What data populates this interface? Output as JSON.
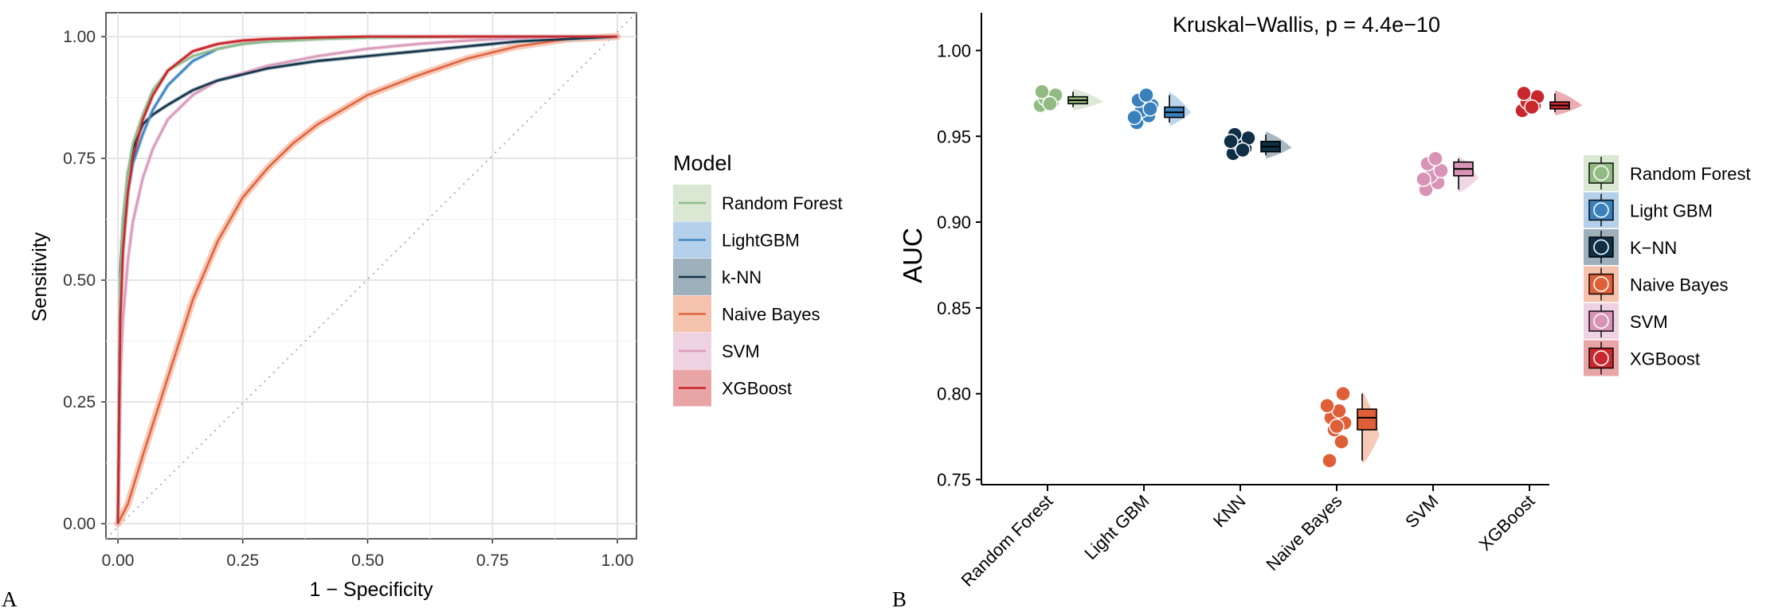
{
  "panels": {
    "a_label": "A",
    "b_label": "B"
  },
  "chart_data": [
    {
      "type": "line",
      "panel": "A",
      "xlabel": "1 − Specificity",
      "ylabel": "Sensitivity",
      "xlim": [
        0,
        1
      ],
      "ylim": [
        0,
        1
      ],
      "xticks": [
        "0.00",
        "0.25",
        "0.50",
        "0.75",
        "1.00"
      ],
      "yticks": [
        "0.00",
        "0.25",
        "0.50",
        "0.75",
        "1.00"
      ],
      "grid": true,
      "diagonal_reference": true,
      "legend": {
        "title": "Model",
        "placement": "right",
        "entries": [
          {
            "name": "Random Forest",
            "line_color": "#8fb98a",
            "band_color": "#d9e7d3"
          },
          {
            "name": "LightGBM",
            "line_color": "#3f86c0",
            "band_color": "#b5d0ea"
          },
          {
            "name": "k-NN",
            "line_color": "#163449",
            "band_color": "#9fb0bd"
          },
          {
            "name": "Naive Bayes",
            "line_color": "#e0643e",
            "band_color": "#f5c2ae"
          },
          {
            "name": "SVM",
            "line_color": "#d99bbb",
            "band_color": "#efd2e1"
          },
          {
            "name": "XGBoost",
            "line_color": "#c9252b",
            "band_color": "#e9a4a6"
          }
        ]
      },
      "series": [
        {
          "name": "Random Forest",
          "color": "#8fb98a",
          "band_color": "#d9e7d3",
          "x": [
            0,
            0.005,
            0.01,
            0.02,
            0.03,
            0.05,
            0.07,
            0.1,
            0.15,
            0.2,
            0.25,
            0.3,
            0.4,
            0.5,
            0.7,
            1.0
          ],
          "y": [
            0,
            0.5,
            0.62,
            0.72,
            0.78,
            0.84,
            0.89,
            0.93,
            0.96,
            0.975,
            0.985,
            0.99,
            0.995,
            0.998,
            1.0,
            1.0
          ]
        },
        {
          "name": "LightGBM",
          "color": "#3f86c0",
          "band_color": "#b5d0ea",
          "x": [
            0,
            0.005,
            0.01,
            0.02,
            0.03,
            0.05,
            0.07,
            0.1,
            0.15,
            0.2,
            0.25,
            0.3,
            0.4,
            0.5,
            0.7,
            1.0
          ],
          "y": [
            0,
            0.45,
            0.58,
            0.68,
            0.74,
            0.8,
            0.85,
            0.9,
            0.95,
            0.975,
            0.985,
            0.99,
            0.995,
            0.998,
            1.0,
            1.0
          ]
        },
        {
          "name": "k-NN",
          "color": "#163449",
          "band_color": "#9fb0bd",
          "x": [
            0,
            0.005,
            0.01,
            0.02,
            0.03,
            0.05,
            0.07,
            0.1,
            0.15,
            0.2,
            0.3,
            0.4,
            0.5,
            0.6,
            0.7,
            0.8,
            0.9,
            1.0
          ],
          "y": [
            0,
            0.52,
            0.62,
            0.72,
            0.77,
            0.82,
            0.84,
            0.86,
            0.89,
            0.91,
            0.935,
            0.95,
            0.96,
            0.97,
            0.98,
            0.99,
            0.995,
            1.0
          ]
        },
        {
          "name": "Naive Bayes",
          "color": "#e0643e",
          "band_color": "#f5c2ae",
          "x": [
            0,
            0.02,
            0.05,
            0.1,
            0.15,
            0.2,
            0.25,
            0.3,
            0.35,
            0.4,
            0.5,
            0.6,
            0.7,
            0.8,
            0.9,
            1.0
          ],
          "y": [
            0,
            0.04,
            0.14,
            0.3,
            0.46,
            0.58,
            0.67,
            0.73,
            0.78,
            0.82,
            0.88,
            0.92,
            0.955,
            0.98,
            0.995,
            1.0
          ]
        },
        {
          "name": "SVM",
          "color": "#d99bbb",
          "band_color": "#efd2e1",
          "x": [
            0,
            0.005,
            0.01,
            0.02,
            0.03,
            0.05,
            0.07,
            0.1,
            0.15,
            0.2,
            0.3,
            0.4,
            0.5,
            0.6,
            0.7,
            0.8,
            1.0
          ],
          "y": [
            0,
            0.3,
            0.42,
            0.54,
            0.62,
            0.71,
            0.77,
            0.83,
            0.88,
            0.91,
            0.94,
            0.96,
            0.975,
            0.985,
            0.992,
            0.997,
            1.0
          ]
        },
        {
          "name": "XGBoost",
          "color": "#c9252b",
          "band_color": "#e9a4a6",
          "x": [
            0,
            0.005,
            0.01,
            0.02,
            0.03,
            0.05,
            0.07,
            0.1,
            0.15,
            0.2,
            0.25,
            0.3,
            0.4,
            0.5,
            0.7,
            1.0
          ],
          "y": [
            0,
            0.42,
            0.56,
            0.68,
            0.75,
            0.83,
            0.88,
            0.93,
            0.97,
            0.985,
            0.992,
            0.995,
            0.998,
            1.0,
            1.0,
            1.0
          ]
        }
      ]
    },
    {
      "type": "raincloud",
      "panel": "B",
      "title": "Kruskal−Wallis, p = 4.4e−10",
      "xlabel": "",
      "ylabel": "AUC",
      "ylim": [
        0.747,
        1.022
      ],
      "yticks": [
        "0.75",
        "0.80",
        "0.85",
        "0.90",
        "0.95",
        "1.00"
      ],
      "categories": [
        "Random Forest",
        "Light GBM",
        "KNN",
        "Naive Bayes",
        "SVM",
        "XGBoost"
      ],
      "legend": {
        "placement": "right",
        "entries": [
          {
            "name": "Random Forest",
            "color": "#92bb84",
            "band_color": "#d9e7d3"
          },
          {
            "name": "Light GBM",
            "color": "#3a81bc",
            "band_color": "#b5d0ea"
          },
          {
            "name": "K−NN",
            "color": "#0f2f46",
            "band_color": "#9fb0bd"
          },
          {
            "name": "Naive Bayes",
            "color": "#df5f38",
            "band_color": "#f5c2ae"
          },
          {
            "name": "SVM",
            "color": "#d893b6",
            "band_color": "#efd2e1"
          },
          {
            "name": "XGBoost",
            "color": "#c8282d",
            "band_color": "#e9a4a6"
          }
        ]
      },
      "series": [
        {
          "name": "Random Forest",
          "color": "#92bb84",
          "fill": "#d9e7d3",
          "points": [
            0.968,
            0.97,
            0.972,
            0.974,
            0.976,
            0.969
          ],
          "box": {
            "min": 0.967,
            "q1": 0.969,
            "median": 0.971,
            "q3": 0.973,
            "max": 0.976
          }
        },
        {
          "name": "Light GBM",
          "color": "#3a81bc",
          "fill": "#b5d0ea",
          "points": [
            0.958,
            0.962,
            0.965,
            0.968,
            0.971,
            0.974,
            0.961,
            0.966
          ],
          "box": {
            "min": 0.958,
            "q1": 0.961,
            "median": 0.964,
            "q3": 0.967,
            "max": 0.974
          }
        },
        {
          "name": "KNN",
          "color": "#0f2f46",
          "fill": "#9fb0bd",
          "points": [
            0.94,
            0.943,
            0.946,
            0.949,
            0.951,
            0.942,
            0.947
          ],
          "box": {
            "min": 0.939,
            "q1": 0.941,
            "median": 0.944,
            "q3": 0.947,
            "max": 0.951
          }
        },
        {
          "name": "Naive Bayes",
          "color": "#df5f38",
          "fill": "#f5c2ae",
          "points": [
            0.761,
            0.772,
            0.779,
            0.783,
            0.786,
            0.79,
            0.793,
            0.8,
            0.781
          ],
          "box": {
            "min": 0.761,
            "q1": 0.779,
            "median": 0.786,
            "q3": 0.791,
            "max": 0.8
          }
        },
        {
          "name": "SVM",
          "color": "#d893b6",
          "fill": "#efd2e1",
          "points": [
            0.919,
            0.923,
            0.927,
            0.93,
            0.934,
            0.937,
            0.925
          ],
          "box": {
            "min": 0.919,
            "q1": 0.927,
            "median": 0.931,
            "q3": 0.935,
            "max": 0.937
          }
        },
        {
          "name": "XGBoost",
          "color": "#c8282d",
          "fill": "#e9a4a6",
          "points": [
            0.965,
            0.968,
            0.97,
            0.973,
            0.975,
            0.967
          ],
          "box": {
            "min": 0.964,
            "q1": 0.966,
            "median": 0.968,
            "q3": 0.97,
            "max": 0.975
          }
        }
      ]
    }
  ]
}
